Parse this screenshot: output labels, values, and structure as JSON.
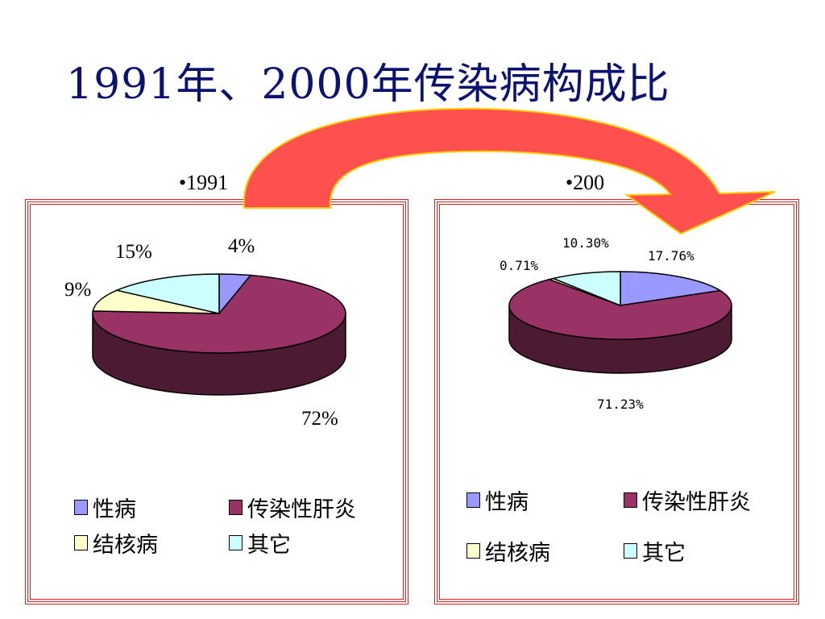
{
  "slide": {
    "title": "1991年、2000年传染病构成比"
  },
  "labels": {
    "left": "•1991",
    "right": "•200"
  },
  "colors": {
    "sex_disease": "#9999ff",
    "hepatitis": "#993366",
    "hepatitis_side": "#4d1a33",
    "tb": "#ffffcc",
    "tb_side": "#808066",
    "other": "#ccffff",
    "other_side": "#668080",
    "sex_side": "#4d4d80",
    "arrow": "#ff5050",
    "arrow_outline": "#ffcc00",
    "panel_border": "#e02020"
  },
  "chart_data": [
    {
      "type": "pie",
      "title": "•1991",
      "categories": [
        "性病",
        "传染性肝炎",
        "结核病",
        "其它"
      ],
      "values": [
        4,
        72,
        9,
        15
      ],
      "value_labels": [
        "4%",
        "72%",
        "9%",
        "15%"
      ],
      "legend_position": "bottom"
    },
    {
      "type": "pie",
      "title": "•200",
      "categories": [
        "性病",
        "传染性肝炎",
        "结核病",
        "其它"
      ],
      "values": [
        17.76,
        71.23,
        0.71,
        10.3
      ],
      "value_labels": [
        "17.76%",
        "71.23%",
        "0.71%",
        "10.30%"
      ],
      "legend_position": "bottom"
    }
  ],
  "legend": {
    "sex_disease": "性病",
    "hepatitis": "传染性肝炎",
    "tb": "结核病",
    "other": "其它"
  }
}
